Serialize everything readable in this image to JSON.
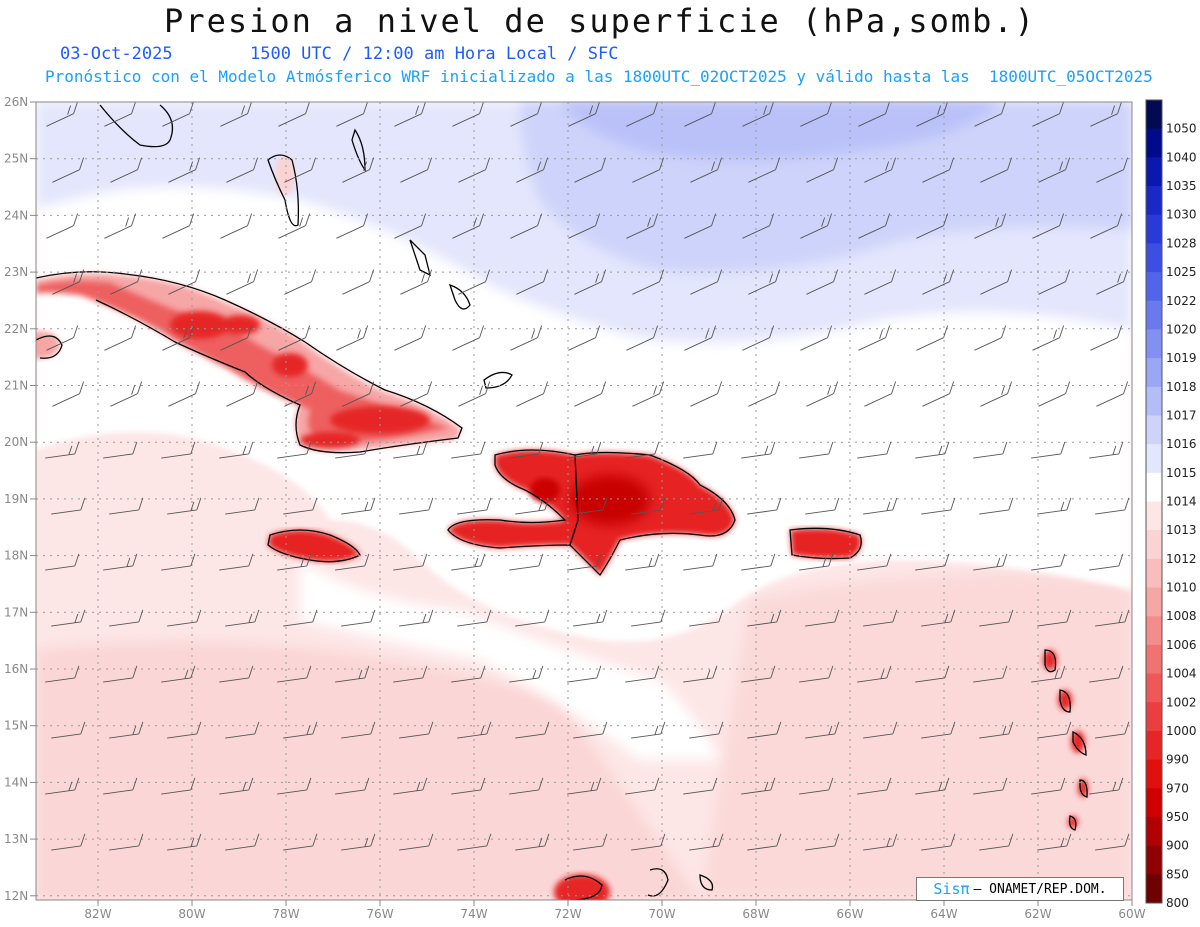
{
  "title": "Presion a nivel de superficie (hPa,somb.)",
  "date": "03-Oct-2025",
  "time_info": "1500 UTC / 12:00 am Hora Local / SFC",
  "model_info": "Pronóstico con el Modelo Atmósferico WRF inicializado a las 1800UTC_02OCT2025 y válido hasta las  1800UTC_05OCT2025",
  "lat_labels": [
    "26N",
    "25N",
    "24N",
    "23N",
    "22N",
    "21N",
    "20N",
    "19N",
    "18N",
    "17N",
    "16N",
    "15N",
    "14N",
    "13N",
    "12N"
  ],
  "lon_labels": [
    "82W",
    "80W",
    "78W",
    "76W",
    "74W",
    "72W",
    "70W",
    "68W",
    "66W",
    "64W",
    "62W",
    "60W"
  ],
  "colorbar": {
    "levels": [
      "1050",
      "1040",
      "1035",
      "1030",
      "1028",
      "1025",
      "1022",
      "1020",
      "1019",
      "1018",
      "1017",
      "1016",
      "1015",
      "1014",
      "1013",
      "1012",
      "1010",
      "1008",
      "1006",
      "1004",
      "1002",
      "1000",
      "990",
      "970",
      "950",
      "900",
      "850",
      "800"
    ],
    "colors": [
      "#030a52",
      "#000a8a",
      "#0a18b0",
      "#1a28c8",
      "#2a3ad8",
      "#3d4ee2",
      "#5264ea",
      "#6a7aee",
      "#8290f2",
      "#9ba6f5",
      "#b4bdf8",
      "#cdd3fa",
      "#e3e6fc",
      "#ffffff",
      "#fde6e6",
      "#fbd3d3",
      "#f9bdbd",
      "#f7a6a6",
      "#f48c8c",
      "#f17272",
      "#ee5858",
      "#eb3e3e",
      "#e62626",
      "#e01010",
      "#d00000",
      "#b00000",
      "#900000",
      "#6e0000"
    ]
  },
  "credit": {
    "brand": "Sisπ",
    "text": "– ONAMET/REP.DOM."
  }
}
